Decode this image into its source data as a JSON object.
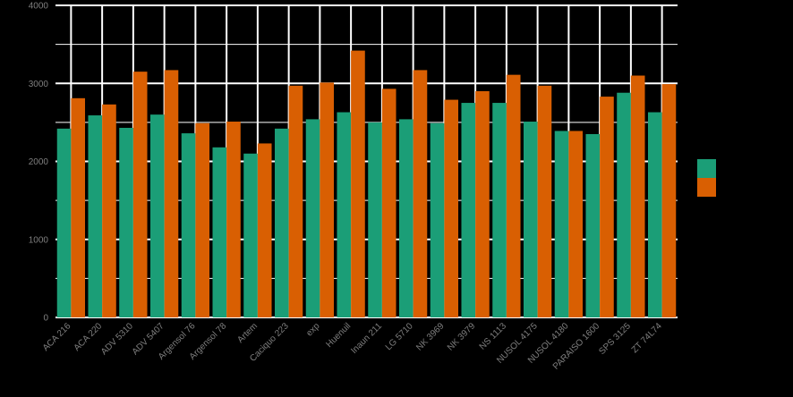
{
  "chart_data": {
    "type": "bar",
    "title": "",
    "xlabel": "",
    "ylabel": "",
    "ylim": [
      0,
      4000
    ],
    "yticks": [
      0,
      1000,
      2000,
      3000,
      4000
    ],
    "grid": true,
    "legend": "right",
    "categories": [
      "ACA 216",
      "ACA 220",
      "ADV 5310",
      "ADV 5407",
      "Argensol 76",
      "Argensol 78",
      "Artem",
      "Caciquo 223",
      "exp",
      "Huenuil",
      "Inaun 211",
      "LG 5710",
      "NK 3969",
      "NK 3979",
      "NS 1113",
      "NUSOL 4175",
      "NUSOL 4180",
      "PARAISO 1600",
      "SPS 3125",
      "ZT 74L74"
    ],
    "series": [
      {
        "color": "#1b9e77",
        "values": [
          2420,
          2590,
          2430,
          2600,
          2360,
          2180,
          2100,
          2420,
          2540,
          2630,
          2500,
          2540,
          2490,
          2750,
          2750,
          2510,
          2390,
          2350,
          2880,
          2630
        ]
      },
      {
        "color": "#d95f02",
        "values": [
          2810,
          2730,
          3150,
          3170,
          2490,
          2510,
          2230,
          2970,
          3010,
          3420,
          2930,
          3170,
          2790,
          2900,
          3110,
          2970,
          2390,
          2830,
          3100,
          2990
        ]
      }
    ]
  }
}
